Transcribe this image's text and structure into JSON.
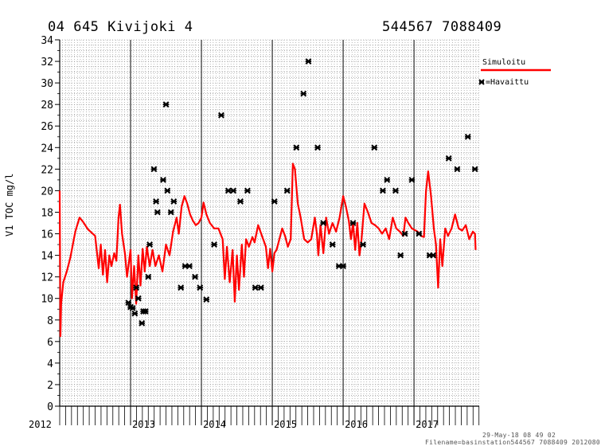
{
  "header": {
    "station": "04 645 Kivijoki 4",
    "coords": "544567 7088409"
  },
  "legend": {
    "simulated_label": "Simuloitu",
    "observed_label": "=Havaittu",
    "simulated_color": "#ff0000",
    "observed_color": "#000000"
  },
  "footer": {
    "timestamp": "29-May-18 08 49 02",
    "filename": "Filename=basinstation544567 7088409 2012080"
  },
  "chart_data": {
    "type": "line",
    "title": "",
    "xlabel": "",
    "ylabel": "V1 TOC mg/l",
    "ylim": [
      0,
      34
    ],
    "y_ticks": [
      0,
      2,
      4,
      6,
      8,
      10,
      12,
      14,
      16,
      18,
      20,
      22,
      24,
      26,
      28,
      30,
      32,
      34
    ],
    "xlim": [
      2012.0,
      2017.92
    ],
    "x_tick_labels": [
      "2012",
      "2013",
      "2014",
      "2015",
      "2016",
      "2017"
    ],
    "grid": true,
    "legend_position": "top-right",
    "series": [
      {
        "name": "Simuloitu",
        "style": "line",
        "color": "#ff0000",
        "points": [
          [
            2012.0,
            20.0
          ],
          [
            2012.01,
            6.5
          ],
          [
            2012.02,
            9.5
          ],
          [
            2012.05,
            11.5
          ],
          [
            2012.1,
            12.5
          ],
          [
            2012.15,
            13.8
          ],
          [
            2012.22,
            16.2
          ],
          [
            2012.28,
            17.5
          ],
          [
            2012.33,
            17.1
          ],
          [
            2012.4,
            16.4
          ],
          [
            2012.5,
            15.8
          ],
          [
            2012.55,
            12.8
          ],
          [
            2012.58,
            15.0
          ],
          [
            2012.61,
            12.2
          ],
          [
            2012.64,
            14.5
          ],
          [
            2012.67,
            11.5
          ],
          [
            2012.7,
            14.0
          ],
          [
            2012.73,
            13.0
          ],
          [
            2012.77,
            14.2
          ],
          [
            2012.8,
            13.5
          ],
          [
            2012.83,
            17.5
          ],
          [
            2012.85,
            18.7
          ],
          [
            2012.88,
            16.0
          ],
          [
            2012.92,
            14.2
          ],
          [
            2012.95,
            12.0
          ],
          [
            2012.98,
            13.5
          ],
          [
            2013.0,
            14.5
          ],
          [
            2013.02,
            10.0
          ],
          [
            2013.05,
            13.0
          ],
          [
            2013.08,
            9.5
          ],
          [
            2013.11,
            14.0
          ],
          [
            2013.14,
            11.2
          ],
          [
            2013.17,
            14.6
          ],
          [
            2013.2,
            12.5
          ],
          [
            2013.23,
            14.8
          ],
          [
            2013.27,
            13.0
          ],
          [
            2013.31,
            14.5
          ],
          [
            2013.35,
            13.0
          ],
          [
            2013.4,
            14.0
          ],
          [
            2013.45,
            12.5
          ],
          [
            2013.5,
            15.0
          ],
          [
            2013.55,
            14.0
          ],
          [
            2013.6,
            16.2
          ],
          [
            2013.65,
            17.5
          ],
          [
            2013.68,
            16.0
          ],
          [
            2013.72,
            18.5
          ],
          [
            2013.76,
            19.5
          ],
          [
            2013.8,
            18.8
          ],
          [
            2013.84,
            17.8
          ],
          [
            2013.88,
            17.2
          ],
          [
            2013.92,
            16.8
          ],
          [
            2013.96,
            17.0
          ],
          [
            2014.0,
            17.5
          ],
          [
            2014.03,
            18.9
          ],
          [
            2014.07,
            17.8
          ],
          [
            2014.12,
            17.0
          ],
          [
            2014.18,
            16.5
          ],
          [
            2014.24,
            16.5
          ],
          [
            2014.3,
            15.5
          ],
          [
            2014.33,
            11.8
          ],
          [
            2014.36,
            14.8
          ],
          [
            2014.4,
            11.5
          ],
          [
            2014.44,
            14.5
          ],
          [
            2014.47,
            9.7
          ],
          [
            2014.5,
            14.0
          ],
          [
            2014.53,
            10.8
          ],
          [
            2014.57,
            15.0
          ],
          [
            2014.6,
            12.0
          ],
          [
            2014.63,
            15.5
          ],
          [
            2014.67,
            14.8
          ],
          [
            2014.72,
            15.7
          ],
          [
            2014.75,
            15.2
          ],
          [
            2014.8,
            16.8
          ],
          [
            2014.86,
            15.7
          ],
          [
            2014.91,
            14.8
          ],
          [
            2014.94,
            12.8
          ],
          [
            2014.97,
            14.6
          ],
          [
            2015.0,
            12.5
          ],
          [
            2015.03,
            14.2
          ],
          [
            2015.06,
            14.5
          ],
          [
            2015.1,
            15.5
          ],
          [
            2015.14,
            16.5
          ],
          [
            2015.18,
            15.8
          ],
          [
            2015.22,
            14.8
          ],
          [
            2015.26,
            15.5
          ],
          [
            2015.29,
            22.5
          ],
          [
            2015.32,
            22.0
          ],
          [
            2015.36,
            18.8
          ],
          [
            2015.4,
            17.5
          ],
          [
            2015.45,
            15.5
          ],
          [
            2015.5,
            15.2
          ],
          [
            2015.55,
            15.5
          ],
          [
            2015.6,
            17.5
          ],
          [
            2015.63,
            16.0
          ],
          [
            2015.65,
            14.0
          ],
          [
            2015.68,
            16.8
          ],
          [
            2015.72,
            14.2
          ],
          [
            2015.76,
            17.5
          ],
          [
            2015.8,
            16.0
          ],
          [
            2015.85,
            17.0
          ],
          [
            2015.9,
            16.2
          ],
          [
            2015.95,
            17.5
          ],
          [
            2016.0,
            19.5
          ],
          [
            2016.04,
            18.5
          ],
          [
            2016.08,
            17.2
          ],
          [
            2016.11,
            15.5
          ],
          [
            2016.14,
            17.0
          ],
          [
            2016.17,
            14.5
          ],
          [
            2016.2,
            17.0
          ],
          [
            2016.23,
            14.0
          ],
          [
            2016.26,
            15.5
          ],
          [
            2016.3,
            18.8
          ],
          [
            2016.35,
            18.0
          ],
          [
            2016.4,
            17.0
          ],
          [
            2016.45,
            16.8
          ],
          [
            2016.5,
            16.5
          ],
          [
            2016.55,
            16.0
          ],
          [
            2016.6,
            16.5
          ],
          [
            2016.65,
            15.5
          ],
          [
            2016.7,
            17.5
          ],
          [
            2016.75,
            16.5
          ],
          [
            2016.8,
            16.2
          ],
          [
            2016.85,
            15.8
          ],
          [
            2016.88,
            17.5
          ],
          [
            2016.92,
            17.0
          ],
          [
            2016.97,
            16.5
          ],
          [
            2017.05,
            16.2
          ],
          [
            2017.1,
            15.8
          ],
          [
            2017.14,
            15.7
          ],
          [
            2017.17,
            20.0
          ],
          [
            2017.2,
            21.8
          ],
          [
            2017.24,
            19.5
          ],
          [
            2017.28,
            16.5
          ],
          [
            2017.31,
            15.0
          ],
          [
            2017.34,
            11.0
          ],
          [
            2017.37,
            15.5
          ],
          [
            2017.4,
            13.0
          ],
          [
            2017.44,
            16.5
          ],
          [
            2017.48,
            15.8
          ],
          [
            2017.53,
            16.5
          ],
          [
            2017.58,
            17.8
          ],
          [
            2017.63,
            16.5
          ],
          [
            2017.68,
            16.3
          ],
          [
            2017.73,
            16.8
          ],
          [
            2017.78,
            15.5
          ],
          [
            2017.83,
            16.2
          ],
          [
            2017.86,
            16.0
          ],
          [
            2017.87,
            14.5
          ]
        ]
      },
      {
        "name": "Havaittu",
        "style": "markers",
        "color": "#000000",
        "points": [
          [
            2012.97,
            9.6
          ],
          [
            2013.0,
            9.2
          ],
          [
            2013.03,
            9.1
          ],
          [
            2013.06,
            8.6
          ],
          [
            2013.08,
            11.0
          ],
          [
            2013.11,
            10.0
          ],
          [
            2013.16,
            7.7
          ],
          [
            2013.18,
            8.8
          ],
          [
            2013.21,
            8.8
          ],
          [
            2013.25,
            12.0
          ],
          [
            2013.27,
            15.0
          ],
          [
            2013.33,
            22.0
          ],
          [
            2013.36,
            19.0
          ],
          [
            2013.38,
            18.0
          ],
          [
            2013.46,
            21.0
          ],
          [
            2013.5,
            28.0
          ],
          [
            2013.52,
            20.0
          ],
          [
            2013.57,
            18.0
          ],
          [
            2013.61,
            19.0
          ],
          [
            2013.71,
            11.0
          ],
          [
            2013.77,
            13.0
          ],
          [
            2013.83,
            13.0
          ],
          [
            2013.91,
            12.0
          ],
          [
            2013.98,
            11.0
          ],
          [
            2014.07,
            9.9
          ],
          [
            2014.18,
            15.0
          ],
          [
            2014.28,
            27.0
          ],
          [
            2014.38,
            20.0
          ],
          [
            2014.45,
            20.0
          ],
          [
            2014.55,
            19.0
          ],
          [
            2014.65,
            20.0
          ],
          [
            2014.76,
            11.0
          ],
          [
            2014.84,
            11.0
          ],
          [
            2015.03,
            19.0
          ],
          [
            2015.21,
            20.0
          ],
          [
            2015.34,
            24.0
          ],
          [
            2015.44,
            29.0
          ],
          [
            2015.51,
            32.0
          ],
          [
            2015.64,
            24.0
          ],
          [
            2015.72,
            17.0
          ],
          [
            2015.85,
            15.0
          ],
          [
            2015.94,
            13.0
          ],
          [
            2016.0,
            13.0
          ],
          [
            2016.14,
            17.0
          ],
          [
            2016.28,
            15.0
          ],
          [
            2016.44,
            24.0
          ],
          [
            2016.56,
            20.0
          ],
          [
            2016.62,
            21.0
          ],
          [
            2016.74,
            20.0
          ],
          [
            2016.81,
            14.0
          ],
          [
            2016.87,
            16.0
          ],
          [
            2016.97,
            21.0
          ],
          [
            2017.07,
            16.0
          ],
          [
            2017.22,
            14.0
          ],
          [
            2017.27,
            14.0
          ],
          [
            2017.49,
            23.0
          ],
          [
            2017.61,
            22.0
          ],
          [
            2017.76,
            25.0
          ],
          [
            2017.86,
            22.0
          ]
        ]
      }
    ]
  }
}
